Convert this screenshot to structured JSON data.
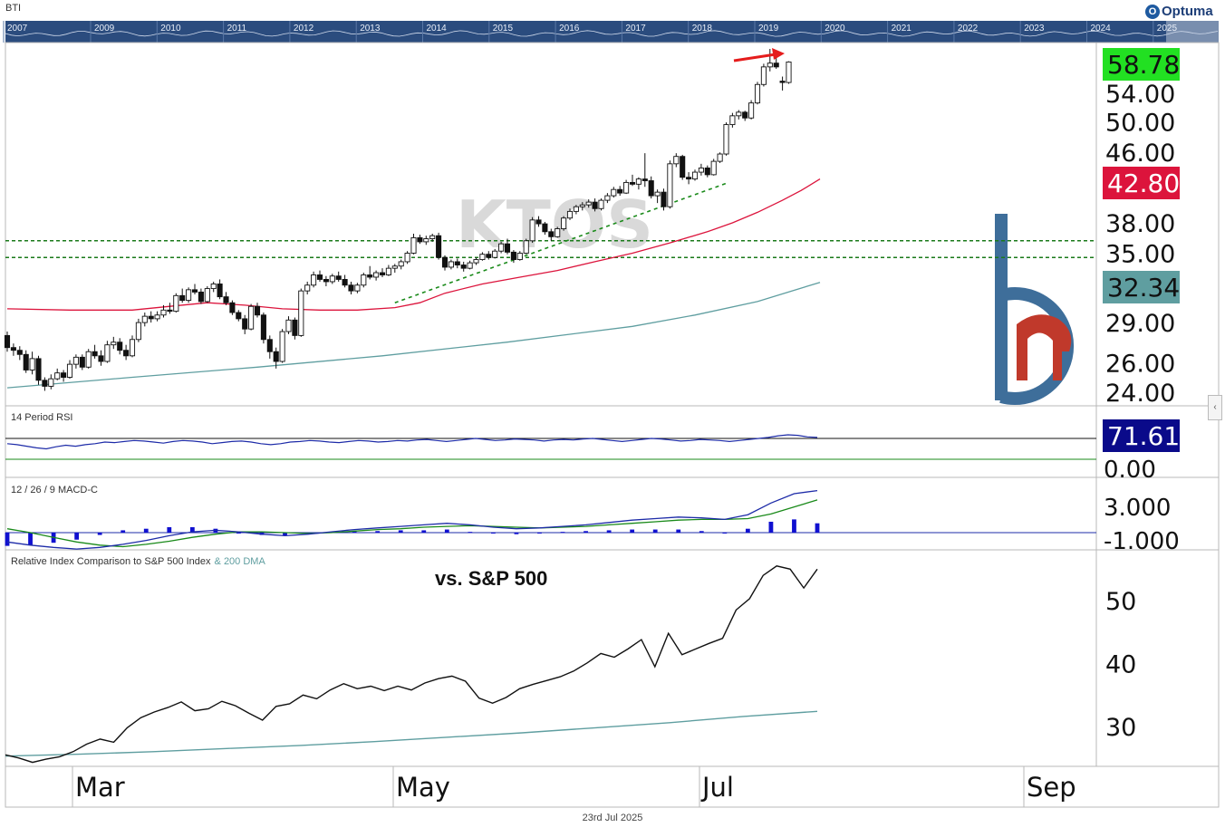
{
  "chart_data": {
    "type": "candlestick",
    "ticker_watermark": "KTOS",
    "top_strip": {
      "label": "BTI",
      "years": [
        "2007",
        "2009",
        "2010",
        "2011",
        "2012",
        "2013",
        "2014",
        "2015",
        "2016",
        "2017",
        "2018",
        "2019",
        "2020",
        "2021",
        "2022",
        "2023",
        "2024",
        "2025"
      ]
    },
    "x_months": [
      "Mar",
      "May",
      "Jul",
      "Sep"
    ],
    "price_panel": {
      "y_ticks": [
        "54.00",
        "50.00",
        "46.00",
        "38.00",
        "35.00",
        "29.00",
        "26.00",
        "24.00"
      ],
      "last_price_label": "58.78",
      "ma_fast_label": "42.80",
      "ma_slow_label": "32.34",
      "support_lines": [
        36.2,
        34.6
      ],
      "candles": [
        [
          28.0,
          28.3,
          26.8,
          27.1
        ],
        [
          27.1,
          27.4,
          26.5,
          26.9
        ],
        [
          26.9,
          27.2,
          26.2,
          26.6
        ],
        [
          26.6,
          26.9,
          25.3,
          25.5
        ],
        [
          25.5,
          26.8,
          25.2,
          26.3
        ],
        [
          26.3,
          26.5,
          24.5,
          24.8
        ],
        [
          24.8,
          25.0,
          24.1,
          24.4
        ],
        [
          24.4,
          25.2,
          24.2,
          24.9
        ],
        [
          24.9,
          25.6,
          24.8,
          25.3
        ],
        [
          25.3,
          25.5,
          24.7,
          25.0
        ],
        [
          25.0,
          26.2,
          24.9,
          25.9
        ],
        [
          25.9,
          26.6,
          25.6,
          26.4
        ],
        [
          26.4,
          26.6,
          25.5,
          25.7
        ],
        [
          25.7,
          27.0,
          25.6,
          26.8
        ],
        [
          26.8,
          27.3,
          26.3,
          26.5
        ],
        [
          26.5,
          26.9,
          25.8,
          26.1
        ],
        [
          26.1,
          27.6,
          26.0,
          27.3
        ],
        [
          27.3,
          27.9,
          27.0,
          27.5
        ],
        [
          27.5,
          27.8,
          26.6,
          26.9
        ],
        [
          26.9,
          27.3,
          26.2,
          26.5
        ],
        [
          26.5,
          28.0,
          26.4,
          27.7
        ],
        [
          27.7,
          29.3,
          27.5,
          29.0
        ],
        [
          29.0,
          29.8,
          28.7,
          29.5
        ],
        [
          29.5,
          29.9,
          29.0,
          29.3
        ],
        [
          29.3,
          29.9,
          29.1,
          29.6
        ],
        [
          29.6,
          30.4,
          29.4,
          30.0
        ],
        [
          30.0,
          30.6,
          29.7,
          29.9
        ],
        [
          29.9,
          31.4,
          29.8,
          31.2
        ],
        [
          31.2,
          31.8,
          30.6,
          30.8
        ],
        [
          30.8,
          31.9,
          30.6,
          31.7
        ],
        [
          31.7,
          32.2,
          31.3,
          31.5
        ],
        [
          31.5,
          31.8,
          30.5,
          30.7
        ],
        [
          30.7,
          32.0,
          30.6,
          31.8
        ],
        [
          31.8,
          32.4,
          31.5,
          32.2
        ],
        [
          32.2,
          32.6,
          30.9,
          31.1
        ],
        [
          31.1,
          31.5,
          30.4,
          30.6
        ],
        [
          30.6,
          30.8,
          29.6,
          29.8
        ],
        [
          29.8,
          30.0,
          29.1,
          29.3
        ],
        [
          29.3,
          29.6,
          28.1,
          28.5
        ],
        [
          28.5,
          30.5,
          28.4,
          30.3
        ],
        [
          30.3,
          30.6,
          29.4,
          29.6
        ],
        [
          29.6,
          29.8,
          27.4,
          27.7
        ],
        [
          27.7,
          28.0,
          26.3,
          26.8
        ],
        [
          26.8,
          27.1,
          25.6,
          26.1
        ],
        [
          26.1,
          28.5,
          26.0,
          28.3
        ],
        [
          28.3,
          29.5,
          28.1,
          29.2
        ],
        [
          29.2,
          29.4,
          27.7,
          28.0
        ],
        [
          28.0,
          31.8,
          27.9,
          31.6
        ],
        [
          31.6,
          32.4,
          31.3,
          32.1
        ],
        [
          32.1,
          33.3,
          31.9,
          33.0
        ],
        [
          33.0,
          33.4,
          32.4,
          32.6
        ],
        [
          32.6,
          32.9,
          32.0,
          32.4
        ],
        [
          32.4,
          33.1,
          32.2,
          32.9
        ],
        [
          32.9,
          33.3,
          32.4,
          32.6
        ],
        [
          32.6,
          33.0,
          31.9,
          32.1
        ],
        [
          32.1,
          32.4,
          31.3,
          31.6
        ],
        [
          31.6,
          32.3,
          31.4,
          32.1
        ],
        [
          32.1,
          33.2,
          31.9,
          33.0
        ],
        [
          33.0,
          33.8,
          32.6,
          32.8
        ],
        [
          32.8,
          33.4,
          32.5,
          33.2
        ],
        [
          33.2,
          33.6,
          32.8,
          33.0
        ],
        [
          33.0,
          33.9,
          32.9,
          33.6
        ],
        [
          33.6,
          34.0,
          33.2,
          33.8
        ],
        [
          33.8,
          34.4,
          33.5,
          34.2
        ],
        [
          34.2,
          35.2,
          34.0,
          35.0
        ],
        [
          35.0,
          36.9,
          34.9,
          36.5
        ],
        [
          36.5,
          36.8,
          35.9,
          36.1
        ],
        [
          36.1,
          36.7,
          35.8,
          36.4
        ],
        [
          36.4,
          36.9,
          36.1,
          36.7
        ],
        [
          36.7,
          37.0,
          34.4,
          34.6
        ],
        [
          34.6,
          34.8,
          33.4,
          33.7
        ],
        [
          33.7,
          34.4,
          33.5,
          34.2
        ],
        [
          34.2,
          34.5,
          33.6,
          33.9
        ],
        [
          33.9,
          34.2,
          33.3,
          33.6
        ],
        [
          33.6,
          34.3,
          33.5,
          34.1
        ],
        [
          34.1,
          34.6,
          33.9,
          34.4
        ],
        [
          34.4,
          35.1,
          34.3,
          34.9
        ],
        [
          34.9,
          35.2,
          34.4,
          34.6
        ],
        [
          34.6,
          35.4,
          34.5,
          35.2
        ],
        [
          35.2,
          36.1,
          35.0,
          35.9
        ],
        [
          35.9,
          36.4,
          34.9,
          35.1
        ],
        [
          35.1,
          35.3,
          34.1,
          34.4
        ],
        [
          34.4,
          35.2,
          34.3,
          35.0
        ],
        [
          35.0,
          36.4,
          34.9,
          36.2
        ],
        [
          36.2,
          38.6,
          36.0,
          38.3
        ],
        [
          38.3,
          38.7,
          37.6,
          37.9
        ],
        [
          37.9,
          38.1,
          36.8,
          37.1
        ],
        [
          37.1,
          37.4,
          36.2,
          36.6
        ],
        [
          36.6,
          37.6,
          36.5,
          37.4
        ],
        [
          37.4,
          38.7,
          37.2,
          38.5
        ],
        [
          38.5,
          39.5,
          38.3,
          39.2
        ],
        [
          39.2,
          39.9,
          38.9,
          39.7
        ],
        [
          39.7,
          40.2,
          39.3,
          39.9
        ],
        [
          39.9,
          40.5,
          39.6,
          40.2
        ],
        [
          40.2,
          40.6,
          39.2,
          39.5
        ],
        [
          39.5,
          40.6,
          39.3,
          40.4
        ],
        [
          40.4,
          41.2,
          40.1,
          40.9
        ],
        [
          40.9,
          41.9,
          40.7,
          41.6
        ],
        [
          41.6,
          42.0,
          40.9,
          41.2
        ],
        [
          41.2,
          42.7,
          41.1,
          42.4
        ],
        [
          42.4,
          43.3,
          42.0,
          42.2
        ],
        [
          42.2,
          43.0,
          41.6,
          42.8
        ],
        [
          42.8,
          45.9,
          41.9,
          42.6
        ],
        [
          42.6,
          43.1,
          40.6,
          40.9
        ],
        [
          40.9,
          41.6,
          40.1,
          41.3
        ],
        [
          41.3,
          41.7,
          39.3,
          39.7
        ],
        [
          39.7,
          45.0,
          39.5,
          44.6
        ],
        [
          44.6,
          45.9,
          44.2,
          45.5
        ],
        [
          45.5,
          45.7,
          42.7,
          43.0
        ],
        [
          43.0,
          43.6,
          42.2,
          42.8
        ],
        [
          42.8,
          43.9,
          42.6,
          43.6
        ],
        [
          43.6,
          44.6,
          43.2,
          44.1
        ],
        [
          44.1,
          44.4,
          43.0,
          43.3
        ],
        [
          43.3,
          45.2,
          43.2,
          44.9
        ],
        [
          44.9,
          46.0,
          44.7,
          45.8
        ],
        [
          45.8,
          49.9,
          45.6,
          49.6
        ],
        [
          49.6,
          51.2,
          49.2,
          50.8
        ],
        [
          50.8,
          51.6,
          50.3,
          51.3
        ],
        [
          51.3,
          51.5,
          50.1,
          50.5
        ],
        [
          50.5,
          53.0,
          50.3,
          52.6
        ],
        [
          52.6,
          55.7,
          52.4,
          55.3
        ],
        [
          55.3,
          58.5,
          55.0,
          58.0
        ],
        [
          58.0,
          60.9,
          57.3,
          58.6
        ],
        [
          58.6,
          59.6,
          57.7,
          58.0
        ],
        [
          55.8,
          56.5,
          54.4,
          55.6
        ],
        [
          55.6,
          58.9,
          55.4,
          58.78
        ]
      ],
      "ma_fast": [
        [
          0,
          30.1
        ],
        [
          10,
          30.0
        ],
        [
          20,
          30.0
        ],
        [
          26,
          30.3
        ],
        [
          32,
          30.6
        ],
        [
          38,
          30.4
        ],
        [
          44,
          30.1
        ],
        [
          50,
          30.0
        ],
        [
          56,
          30.0
        ],
        [
          62,
          30.2
        ],
        [
          66,
          30.6
        ],
        [
          70,
          31.4
        ],
        [
          76,
          32.2
        ],
        [
          82,
          32.8
        ],
        [
          88,
          33.4
        ],
        [
          94,
          34.2
        ],
        [
          100,
          35.0
        ],
        [
          106,
          36.0
        ],
        [
          112,
          37.1
        ],
        [
          116,
          38.0
        ],
        [
          120,
          39.1
        ],
        [
          124,
          40.4
        ],
        [
          127,
          41.5
        ],
        [
          130,
          42.8
        ]
      ],
      "ma_slow": [
        [
          0,
          24.3
        ],
        [
          20,
          25.0
        ],
        [
          40,
          25.7
        ],
        [
          60,
          26.5
        ],
        [
          80,
          27.5
        ],
        [
          100,
          28.7
        ],
        [
          110,
          29.6
        ],
        [
          120,
          30.7
        ],
        [
          130,
          32.34
        ]
      ],
      "trendline": [
        [
          62,
          30.6
        ],
        [
          115,
          42.3
        ]
      ]
    },
    "rsi_panel": {
      "title": "14 Period RSI",
      "value_label": "71.61",
      "y_ticks": [
        "0.00"
      ],
      "levels": [
        70,
        30
      ],
      "values": [
        60,
        58,
        55,
        52,
        50,
        54,
        57,
        55,
        58,
        60,
        63,
        62,
        64,
        66,
        65,
        63,
        61,
        64,
        66,
        65,
        63,
        60,
        62,
        64,
        65,
        63,
        60,
        58,
        60,
        63,
        64,
        66,
        65,
        63,
        62,
        64,
        66,
        65,
        63,
        64,
        66,
        65,
        67,
        68,
        66,
        64,
        66,
        68,
        70,
        68,
        66,
        67,
        69,
        68,
        67,
        65,
        67,
        68,
        67,
        69,
        70,
        68,
        66,
        64,
        66,
        68,
        70,
        69,
        67,
        65,
        66,
        68,
        67,
        66,
        64,
        66,
        68,
        70,
        72,
        75,
        77,
        76,
        73,
        72
      ],
      "values_end": "71.61"
    },
    "macd_panel": {
      "title": "12 / 26 / 9 MACD-C",
      "y_ticks": [
        "3.000",
        "-1.000"
      ],
      "macd": [
        -1.2,
        -1.6,
        -1.9,
        -2.1,
        -1.9,
        -1.5,
        -1.0,
        -0.4,
        0.1,
        0.3,
        0.1,
        -0.2,
        -0.4,
        -0.2,
        0.1,
        0.4,
        0.6,
        0.8,
        1.0,
        1.2,
        1.0,
        0.7,
        0.5,
        0.6,
        0.8,
        1.0,
        1.3,
        1.6,
        1.8,
        2.0,
        1.9,
        1.7,
        2.3,
        3.8,
        5.0,
        5.4
      ],
      "signal": [
        0.5,
        0.0,
        -0.6,
        -1.2,
        -1.6,
        -1.8,
        -1.5,
        -1.1,
        -0.6,
        -0.2,
        0.1,
        0.1,
        0.0,
        -0.1,
        0.0,
        0.2,
        0.4,
        0.5,
        0.7,
        0.8,
        0.9,
        0.8,
        0.7,
        0.6,
        0.7,
        0.8,
        1.0,
        1.2,
        1.4,
        1.6,
        1.7,
        1.7,
        1.8,
        2.4,
        3.3,
        4.2
      ],
      "histogram": [
        -1.7,
        -1.6,
        -1.3,
        -0.9,
        -0.3,
        0.3,
        0.5,
        0.7,
        0.7,
        0.5,
        0.0,
        -0.3,
        -0.4,
        -0.1,
        0.1,
        0.2,
        0.2,
        0.3,
        0.3,
        0.4,
        0.1,
        -0.1,
        -0.2,
        0.0,
        0.1,
        0.2,
        0.3,
        0.4,
        0.4,
        0.4,
        0.2,
        0.0,
        0.5,
        1.4,
        1.7,
        1.2
      ]
    },
    "relative_panel": {
      "title": "Relative Index Comparison to S&P 500 Index",
      "title_ma": "& 200 DMA",
      "annotation": "vs. S&P 500",
      "y_ticks": [
        "50",
        "40",
        "30"
      ],
      "ratio": [
        25.5,
        25.0,
        24.3,
        24.8,
        25.2,
        26.0,
        27.2,
        28.0,
        27.5,
        29.8,
        31.4,
        32.3,
        33.0,
        33.9,
        32.5,
        32.8,
        34.0,
        33.3,
        32.1,
        31.0,
        33.2,
        33.6,
        35.0,
        34.4,
        35.8,
        36.8,
        36.0,
        36.4,
        35.7,
        36.4,
        35.8,
        36.9,
        37.6,
        38.0,
        37.2,
        34.5,
        33.7,
        34.6,
        36.0,
        36.7,
        37.3,
        37.9,
        38.8,
        40.1,
        41.6,
        41.0,
        42.3,
        43.8,
        39.5,
        44.8,
        41.4,
        42.3,
        43.2,
        44.0,
        48.5,
        50.3,
        54.0,
        55.5,
        55.0,
        52.0,
        55.0
      ],
      "ma200": [
        25.3,
        25.6,
        26.0,
        26.5,
        27.0,
        27.6,
        28.3,
        29.0,
        29.8,
        30.6,
        31.6,
        32.4
      ]
    },
    "footer_date": "23rd Jul 2025",
    "brand": "Optuma"
  }
}
